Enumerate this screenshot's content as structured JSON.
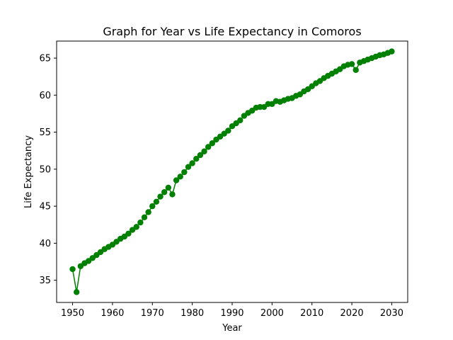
{
  "chart_data": {
    "type": "line",
    "title": "Graph for Year vs Life Expectancy in Comoros",
    "xlabel": "Year",
    "ylabel": "Life Expectancy",
    "xlim": [
      1946,
      2034
    ],
    "ylim": [
      32.0,
      67.3
    ],
    "xticks": [
      1950,
      1960,
      1970,
      1980,
      1990,
      2000,
      2010,
      2020,
      2030
    ],
    "yticks": [
      35,
      40,
      45,
      50,
      55,
      60,
      65
    ],
    "grid": false,
    "legend": "none",
    "color": "#008000",
    "marker": "circle",
    "series": [
      {
        "x": [
          1950,
          1951,
          1952,
          1953,
          1954,
          1955,
          1956,
          1957,
          1958,
          1959,
          1960,
          1961,
          1962,
          1963,
          1964,
          1965,
          1966,
          1967,
          1968,
          1969,
          1970,
          1971,
          1972,
          1973,
          1974,
          1975,
          1976,
          1977,
          1978,
          1979,
          1980,
          1981,
          1982,
          1983,
          1984,
          1985,
          1986,
          1987,
          1988,
          1989,
          1990,
          1991,
          1992,
          1993,
          1994,
          1995,
          1996,
          1997,
          1998,
          1999,
          2000,
          2001,
          2002,
          2003,
          2004,
          2005,
          2006,
          2007,
          2008,
          2009,
          2010,
          2011,
          2012,
          2013,
          2014,
          2015,
          2016,
          2017,
          2018,
          2019,
          2020,
          2021,
          2022,
          2023,
          2024,
          2025,
          2026,
          2027,
          2028,
          2029,
          2030
        ],
        "values": [
          36.5,
          33.4,
          36.9,
          37.3,
          37.6,
          38.0,
          38.4,
          38.8,
          39.2,
          39.5,
          39.8,
          40.2,
          40.6,
          40.9,
          41.3,
          41.8,
          42.2,
          42.8,
          43.5,
          44.2,
          45.0,
          45.6,
          46.3,
          46.9,
          47.5,
          46.6,
          48.5,
          49.0,
          49.6,
          50.3,
          50.8,
          51.4,
          51.9,
          52.4,
          53.0,
          53.5,
          54.0,
          54.4,
          54.8,
          55.2,
          55.8,
          56.2,
          56.6,
          57.2,
          57.6,
          57.9,
          58.3,
          58.4,
          58.4,
          58.8,
          58.8,
          59.2,
          59.1,
          59.3,
          59.5,
          59.6,
          59.9,
          60.1,
          60.5,
          60.8,
          61.2,
          61.6,
          61.9,
          62.3,
          62.6,
          62.9,
          63.2,
          63.5,
          63.9,
          64.1,
          64.2,
          63.4,
          64.4,
          64.6,
          64.8,
          65.0,
          65.2,
          65.4,
          65.5,
          65.7,
          65.9
        ]
      }
    ]
  }
}
